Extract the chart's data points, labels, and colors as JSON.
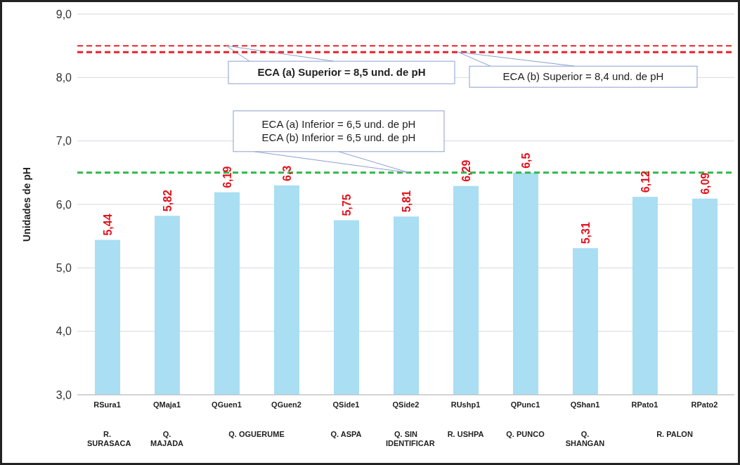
{
  "chart_data": {
    "type": "bar",
    "ylabel": "Unidades de pH",
    "categories": [
      "RSura1",
      "QMaja1",
      "QGuen1",
      "QGuen2",
      "QSide1",
      "QSide2",
      "RUshp1",
      "QPunc1",
      "QShan1",
      "RPato1",
      "RPato2"
    ],
    "values": [
      5.44,
      5.82,
      6.19,
      6.3,
      5.75,
      5.81,
      6.29,
      6.5,
      5.31,
      6.12,
      6.09
    ],
    "value_labels": [
      "5,44",
      "5,82",
      "6,19",
      "6,3",
      "5,75",
      "5,81",
      "6,29",
      "6,5",
      "5,31",
      "6,12",
      "6,09"
    ],
    "color": "#a9def3",
    "ylim": [
      3,
      9
    ],
    "yticks": [
      {
        "value": 3,
        "label": "3,0"
      },
      {
        "value": 4,
        "label": "4,0"
      },
      {
        "value": 5,
        "label": "5,0"
      },
      {
        "value": 6,
        "label": "6,0"
      },
      {
        "value": 7,
        "label": "7,0"
      },
      {
        "value": 8,
        "label": "8,0"
      },
      {
        "value": 9,
        "label": "9,0"
      }
    ],
    "grid": "y",
    "ref_lines": [
      {
        "axis": "y",
        "value": 8.5,
        "label": "ECA (a) Superior = 8,5 und. de pH",
        "color": "#e8212b",
        "line_style": "dashed"
      },
      {
        "axis": "y",
        "value": 8.4,
        "label": "ECA (b) Superior = 8,4 und. de pH",
        "color": "#e8212b",
        "line_style": "dashed"
      },
      {
        "axis": "y",
        "value": 6.5,
        "label": "ECA (a) Inferior = 6,5 und. de pH\nECA (b) Inferior = 6,5 und. de pH",
        "color": "#2fb84a",
        "line_style": "dashed"
      }
    ],
    "annotations": [
      "R. SURASACA",
      "Q. MAJADA",
      "Q. OGUERUME",
      "Q. ASPA",
      "Q. SIN IDENTIFICAR",
      "R. USHPA",
      "Q. PUNCO",
      "Q. SHANGAN",
      "R. PALON"
    ]
  }
}
